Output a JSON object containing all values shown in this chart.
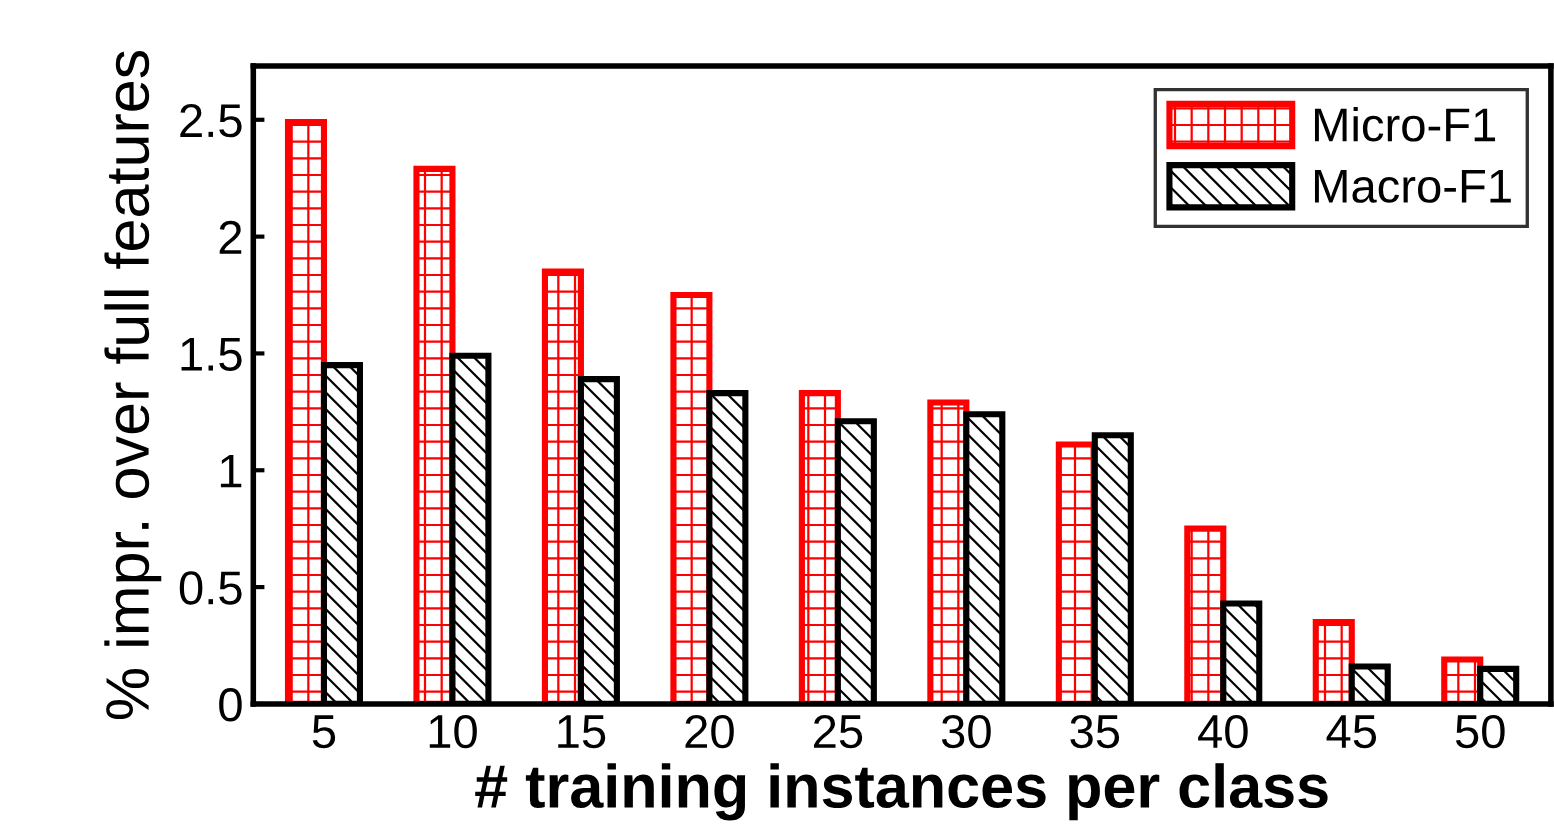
{
  "chart_data": {
    "type": "bar",
    "xlabel": "# training instances per class",
    "ylabel": "% impr. over full features",
    "categories": [
      "5",
      "10",
      "15",
      "20",
      "25",
      "30",
      "35",
      "40",
      "45",
      "50"
    ],
    "series": [
      {
        "name": "Micro-F1",
        "color": "#ff0000",
        "values": [
          2.49,
          2.29,
          1.85,
          1.75,
          1.33,
          1.29,
          1.11,
          0.75,
          0.35,
          0.19
        ]
      },
      {
        "name": "Macro-F1",
        "color": "#000000",
        "values": [
          1.45,
          1.49,
          1.39,
          1.33,
          1.21,
          1.24,
          1.15,
          0.43,
          0.16,
          0.15
        ]
      }
    ],
    "ylim": [
      0,
      2.73
    ],
    "yticks": [
      0,
      0.5,
      1,
      1.5,
      2,
      2.5
    ],
    "grid": false,
    "legend": "top right"
  }
}
